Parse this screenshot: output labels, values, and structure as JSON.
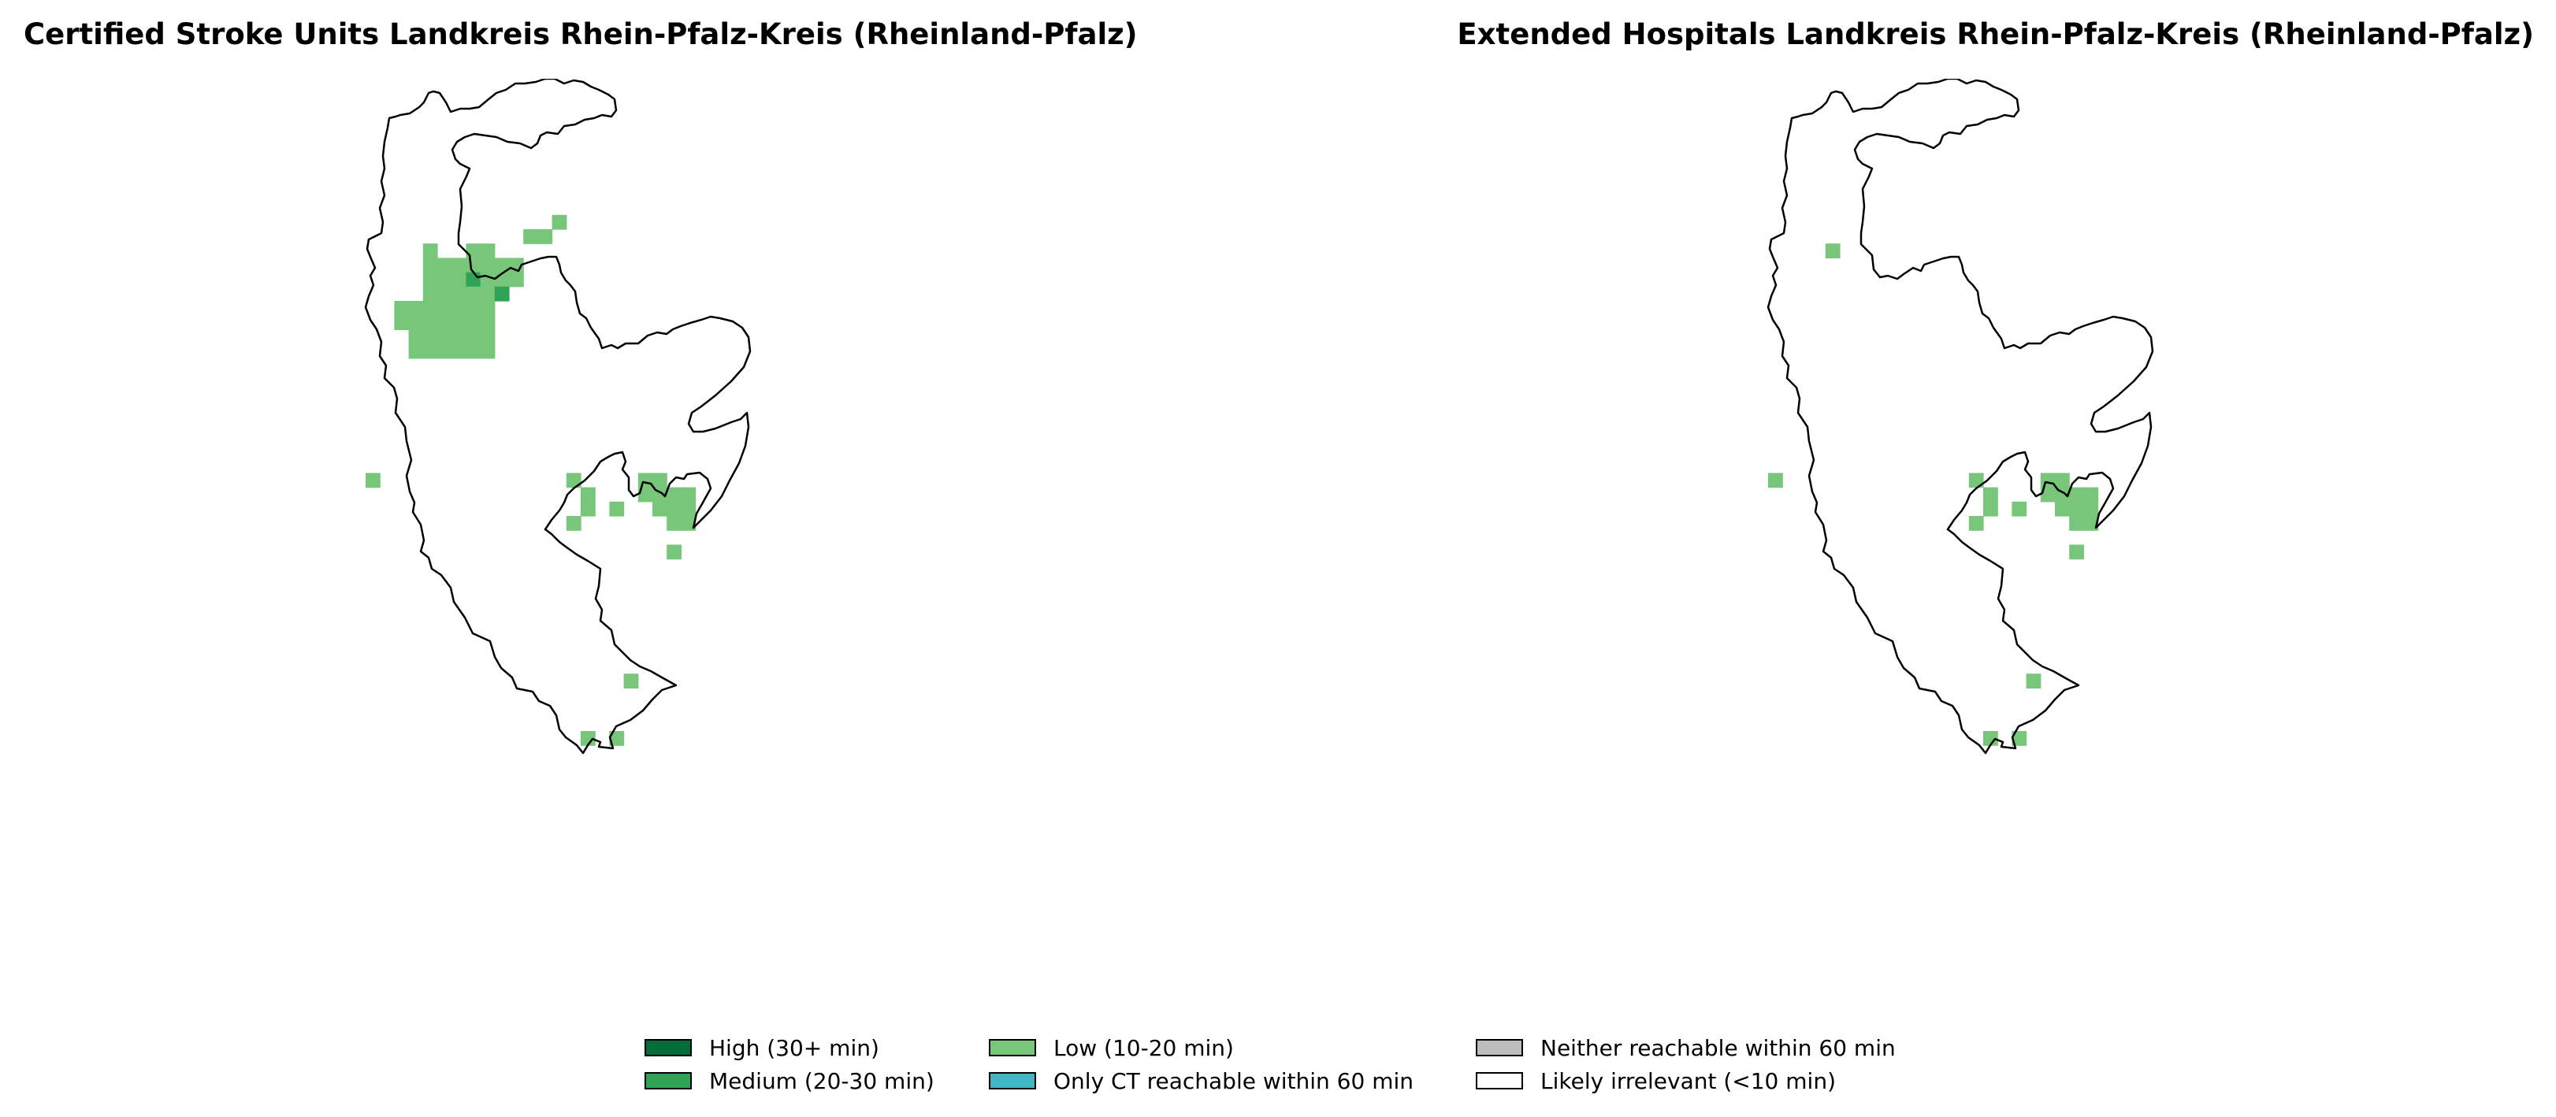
{
  "panels": [
    {
      "title": "Certified Stroke Units Landkreis Rhein-Pfalz-Kreis (Rheinland-Pfalz)",
      "cells": [
        {
          "col": 13,
          "row": 4,
          "level": "low"
        },
        {
          "col": 11,
          "row": 5,
          "level": "low"
        },
        {
          "col": 12,
          "row": 5,
          "level": "low"
        },
        {
          "col": 4,
          "row": 6,
          "level": "low"
        },
        {
          "col": 7,
          "row": 6,
          "level": "low"
        },
        {
          "col": 8,
          "row": 6,
          "level": "low"
        },
        {
          "col": 4,
          "row": 7,
          "level": "low"
        },
        {
          "col": 5,
          "row": 7,
          "level": "low"
        },
        {
          "col": 6,
          "row": 7,
          "level": "low"
        },
        {
          "col": 7,
          "row": 7,
          "level": "low"
        },
        {
          "col": 8,
          "row": 7,
          "level": "low"
        },
        {
          "col": 9,
          "row": 7,
          "level": "low"
        },
        {
          "col": 10,
          "row": 7,
          "level": "low"
        },
        {
          "col": 4,
          "row": 8,
          "level": "low"
        },
        {
          "col": 5,
          "row": 8,
          "level": "low"
        },
        {
          "col": 6,
          "row": 8,
          "level": "low"
        },
        {
          "col": 7,
          "row": 8,
          "level": "medium"
        },
        {
          "col": 8,
          "row": 8,
          "level": "low"
        },
        {
          "col": 9,
          "row": 8,
          "level": "low"
        },
        {
          "col": 10,
          "row": 8,
          "level": "low"
        },
        {
          "col": 4,
          "row": 9,
          "level": "low"
        },
        {
          "col": 5,
          "row": 9,
          "level": "low"
        },
        {
          "col": 6,
          "row": 9,
          "level": "low"
        },
        {
          "col": 7,
          "row": 9,
          "level": "low"
        },
        {
          "col": 8,
          "row": 9,
          "level": "low"
        },
        {
          "col": 9,
          "row": 9,
          "level": "medium"
        },
        {
          "col": 2,
          "row": 10,
          "level": "low"
        },
        {
          "col": 3,
          "row": 10,
          "level": "low"
        },
        {
          "col": 4,
          "row": 10,
          "level": "low"
        },
        {
          "col": 5,
          "row": 10,
          "level": "low"
        },
        {
          "col": 6,
          "row": 10,
          "level": "low"
        },
        {
          "col": 7,
          "row": 10,
          "level": "low"
        },
        {
          "col": 8,
          "row": 10,
          "level": "low"
        },
        {
          "col": 2,
          "row": 11,
          "level": "low"
        },
        {
          "col": 3,
          "row": 11,
          "level": "low"
        },
        {
          "col": 4,
          "row": 11,
          "level": "low"
        },
        {
          "col": 5,
          "row": 11,
          "level": "low"
        },
        {
          "col": 6,
          "row": 11,
          "level": "low"
        },
        {
          "col": 7,
          "row": 11,
          "level": "low"
        },
        {
          "col": 8,
          "row": 11,
          "level": "low"
        },
        {
          "col": 3,
          "row": 12,
          "level": "low"
        },
        {
          "col": 4,
          "row": 12,
          "level": "low"
        },
        {
          "col": 5,
          "row": 12,
          "level": "low"
        },
        {
          "col": 6,
          "row": 12,
          "level": "low"
        },
        {
          "col": 7,
          "row": 12,
          "level": "low"
        },
        {
          "col": 8,
          "row": 12,
          "level": "low"
        },
        {
          "col": 3,
          "row": 13,
          "level": "low"
        },
        {
          "col": 4,
          "row": 13,
          "level": "low"
        },
        {
          "col": 5,
          "row": 13,
          "level": "low"
        },
        {
          "col": 6,
          "row": 13,
          "level": "low"
        },
        {
          "col": 7,
          "row": 13,
          "level": "low"
        },
        {
          "col": 8,
          "row": 13,
          "level": "low"
        },
        {
          "col": 0,
          "row": 22,
          "level": "low"
        },
        {
          "col": 14,
          "row": 22,
          "level": "low"
        },
        {
          "col": 19,
          "row": 22,
          "level": "low"
        },
        {
          "col": 20,
          "row": 22,
          "level": "low"
        },
        {
          "col": 15,
          "row": 23,
          "level": "low"
        },
        {
          "col": 19,
          "row": 23,
          "level": "low"
        },
        {
          "col": 20,
          "row": 23,
          "level": "low"
        },
        {
          "col": 21,
          "row": 23,
          "level": "low"
        },
        {
          "col": 22,
          "row": 23,
          "level": "low"
        },
        {
          "col": 15,
          "row": 24,
          "level": "low"
        },
        {
          "col": 17,
          "row": 24,
          "level": "low"
        },
        {
          "col": 20,
          "row": 24,
          "level": "low"
        },
        {
          "col": 21,
          "row": 24,
          "level": "low"
        },
        {
          "col": 22,
          "row": 24,
          "level": "low"
        },
        {
          "col": 14,
          "row": 25,
          "level": "low"
        },
        {
          "col": 21,
          "row": 25,
          "level": "low"
        },
        {
          "col": 22,
          "row": 25,
          "level": "low"
        },
        {
          "col": 21,
          "row": 27,
          "level": "low"
        },
        {
          "col": 18,
          "row": 36,
          "level": "low"
        },
        {
          "col": 15,
          "row": 40,
          "level": "low"
        },
        {
          "col": 17,
          "row": 40,
          "level": "low"
        }
      ]
    },
    {
      "title": "Extended Hospitals Landkreis Rhein-Pfalz-Kreis (Rheinland-Pfalz)",
      "cells": [
        {
          "col": 4,
          "row": 6,
          "level": "low"
        },
        {
          "col": 0,
          "row": 22,
          "level": "low"
        },
        {
          "col": 14,
          "row": 22,
          "level": "low"
        },
        {
          "col": 19,
          "row": 22,
          "level": "low"
        },
        {
          "col": 20,
          "row": 22,
          "level": "low"
        },
        {
          "col": 15,
          "row": 23,
          "level": "low"
        },
        {
          "col": 19,
          "row": 23,
          "level": "low"
        },
        {
          "col": 20,
          "row": 23,
          "level": "low"
        },
        {
          "col": 21,
          "row": 23,
          "level": "low"
        },
        {
          "col": 22,
          "row": 23,
          "level": "low"
        },
        {
          "col": 15,
          "row": 24,
          "level": "low"
        },
        {
          "col": 17,
          "row": 24,
          "level": "low"
        },
        {
          "col": 20,
          "row": 24,
          "level": "low"
        },
        {
          "col": 21,
          "row": 24,
          "level": "low"
        },
        {
          "col": 22,
          "row": 24,
          "level": "low"
        },
        {
          "col": 14,
          "row": 25,
          "level": "low"
        },
        {
          "col": 21,
          "row": 25,
          "level": "low"
        },
        {
          "col": 22,
          "row": 25,
          "level": "low"
        },
        {
          "col": 21,
          "row": 27,
          "level": "low"
        },
        {
          "col": 18,
          "row": 36,
          "level": "low"
        },
        {
          "col": 15,
          "row": 40,
          "level": "low"
        },
        {
          "col": 17,
          "row": 40,
          "level": "low"
        }
      ]
    }
  ],
  "legend": [
    {
      "key": "high",
      "label": "High (30+ min)",
      "color": "#006d3a"
    },
    {
      "key": "medium",
      "label": "Medium (20-30 min)",
      "color": "#31a354"
    },
    {
      "key": "low",
      "label": "Low (10-20 min)",
      "color": "#78c679"
    },
    {
      "key": "ct",
      "label": "Only CT reachable within 60 min",
      "color": "#41b6c4"
    },
    {
      "key": "neither",
      "label": "Neither reachable within 60 min",
      "color": "#bdbdbd"
    },
    {
      "key": "irrelevant",
      "label": "Likely irrelevant (<10 min)",
      "color": "#ffffff"
    }
  ],
  "colors": {
    "high": "#006d3a",
    "medium": "#31a354",
    "low": "#78c679",
    "ct": "#41b6c4",
    "neither": "#bdbdbd",
    "irrelevant": "#ffffff",
    "outline": "#000000"
  }
}
